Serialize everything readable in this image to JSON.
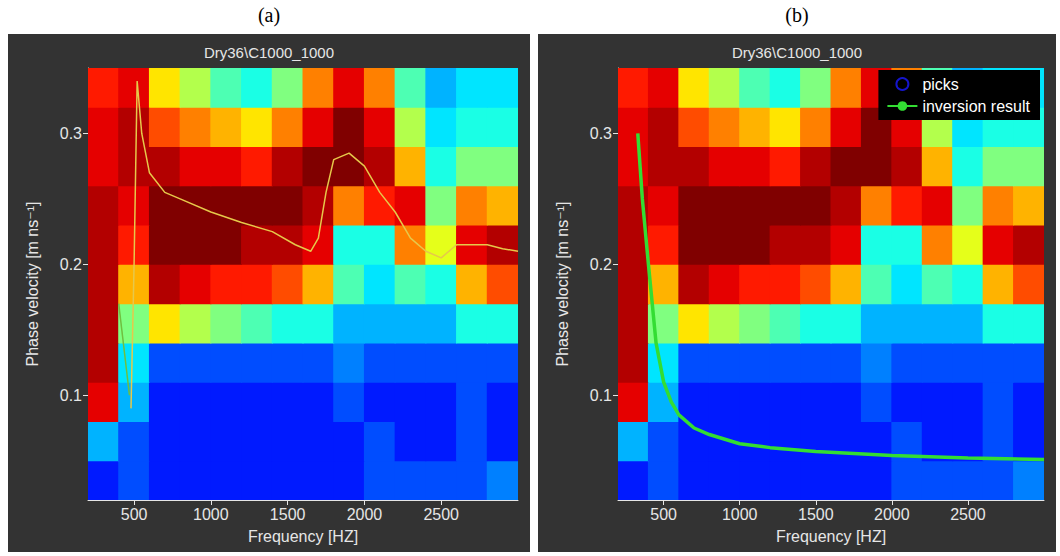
{
  "chart_data": [
    {
      "type": "heatmap",
      "panel": "(a)",
      "title": "Dry36\\C1000_1000",
      "x_label": "Frequency [HZ]",
      "y_label": "Phase velocity [m ns⁻¹]",
      "xlim": [
        200,
        3000
      ],
      "ylim": [
        0.02,
        0.35
      ],
      "xticks": [
        500,
        1000,
        1500,
        2000,
        2500
      ],
      "yticks": [
        0.1,
        0.2,
        0.3
      ],
      "grid": false,
      "heatmap": {
        "x_edges": [
          200,
          400,
          600,
          800,
          1000,
          1200,
          1400,
          1600,
          1800,
          2000,
          2200,
          2400,
          2600,
          2800,
          3000
        ],
        "y_edges": [
          0.02,
          0.05,
          0.08,
          0.11,
          0.14,
          0.17,
          0.2,
          0.23,
          0.26,
          0.29,
          0.32,
          0.35
        ],
        "clim": [
          0,
          1
        ],
        "cells": [
          [
            0.15,
            0.2,
            0.15,
            0.15,
            0.15,
            0.15,
            0.15,
            0.15,
            0.15,
            0.2,
            0.2,
            0.2,
            0.2,
            0.25
          ],
          [
            0.3,
            0.2,
            0.15,
            0.15,
            0.15,
            0.15,
            0.15,
            0.15,
            0.15,
            0.2,
            0.15,
            0.15,
            0.2,
            0.15
          ],
          [
            0.9,
            0.3,
            0.15,
            0.15,
            0.15,
            0.15,
            0.15,
            0.15,
            0.2,
            0.15,
            0.15,
            0.15,
            0.2,
            0.15
          ],
          [
            0.95,
            0.35,
            0.2,
            0.2,
            0.2,
            0.2,
            0.2,
            0.2,
            0.25,
            0.2,
            0.2,
            0.2,
            0.2,
            0.2
          ],
          [
            0.95,
            0.5,
            0.65,
            0.55,
            0.5,
            0.45,
            0.4,
            0.4,
            0.3,
            0.3,
            0.3,
            0.3,
            0.4,
            0.4
          ],
          [
            0.95,
            0.7,
            0.95,
            0.9,
            0.85,
            0.85,
            0.8,
            0.7,
            0.45,
            0.35,
            0.45,
            0.4,
            0.7,
            0.8
          ],
          [
            0.95,
            0.85,
            1.0,
            1.0,
            1.0,
            0.95,
            0.95,
            0.9,
            0.4,
            0.4,
            0.75,
            0.6,
            0.9,
            0.95
          ],
          [
            0.95,
            0.9,
            1.0,
            1.0,
            1.0,
            1.0,
            1.0,
            0.95,
            0.75,
            0.85,
            0.9,
            0.5,
            0.75,
            0.7
          ],
          [
            0.9,
            0.95,
            0.95,
            0.9,
            0.9,
            0.85,
            0.95,
            1.0,
            1.0,
            0.95,
            0.7,
            0.4,
            0.5,
            0.5
          ],
          [
            0.9,
            0.95,
            0.8,
            0.75,
            0.7,
            0.65,
            0.75,
            0.9,
            1.0,
            0.9,
            0.55,
            0.35,
            0.4,
            0.4
          ],
          [
            0.85,
            0.9,
            0.65,
            0.55,
            0.45,
            0.4,
            0.5,
            0.75,
            0.9,
            0.75,
            0.45,
            0.3,
            0.35,
            0.35
          ]
        ]
      },
      "series": [
        {
          "type": "line",
          "color": "#6fbf3f",
          "x": [
            400,
            470
          ],
          "values": [
            0.17,
            0.1
          ]
        },
        {
          "type": "line",
          "color": "#e6c84a",
          "x": [
            480,
            500,
            520,
            550,
            600,
            700,
            800,
            1000,
            1200,
            1400,
            1550,
            1650,
            1700,
            1750,
            1800,
            1900,
            2000,
            2100,
            2200,
            2300,
            2400,
            2500,
            2600,
            2700,
            2800,
            2900,
            3000
          ],
          "values": [
            0.09,
            0.2,
            0.34,
            0.3,
            0.27,
            0.255,
            0.25,
            0.24,
            0.232,
            0.225,
            0.215,
            0.21,
            0.22,
            0.255,
            0.28,
            0.285,
            0.275,
            0.255,
            0.24,
            0.22,
            0.21,
            0.205,
            0.215,
            0.215,
            0.215,
            0.212,
            0.21
          ]
        }
      ]
    },
    {
      "type": "heatmap",
      "panel": "(b)",
      "title": "Dry36\\C1000_1000",
      "x_label": "Frequency [HZ]",
      "y_label": "Phase velocity [m ns⁻¹]",
      "xlim": [
        200,
        3000
      ],
      "ylim": [
        0.02,
        0.35
      ],
      "xticks": [
        500,
        1000,
        1500,
        2000,
        2500
      ],
      "yticks": [
        0.1,
        0.2,
        0.3
      ],
      "grid": false,
      "legend": "upper right",
      "heatmap": {
        "x_edges": [
          200,
          400,
          600,
          800,
          1000,
          1200,
          1400,
          1600,
          1800,
          2000,
          2200,
          2400,
          2600,
          2800,
          3000
        ],
        "y_edges": [
          0.02,
          0.05,
          0.08,
          0.11,
          0.14,
          0.17,
          0.2,
          0.23,
          0.26,
          0.29,
          0.32,
          0.35
        ],
        "clim": [
          0,
          1
        ],
        "cells": [
          [
            0.15,
            0.2,
            0.15,
            0.15,
            0.15,
            0.15,
            0.15,
            0.15,
            0.15,
            0.2,
            0.2,
            0.2,
            0.2,
            0.25
          ],
          [
            0.3,
            0.2,
            0.15,
            0.15,
            0.15,
            0.15,
            0.15,
            0.15,
            0.15,
            0.2,
            0.15,
            0.15,
            0.2,
            0.15
          ],
          [
            0.9,
            0.3,
            0.15,
            0.15,
            0.15,
            0.15,
            0.15,
            0.15,
            0.2,
            0.15,
            0.15,
            0.15,
            0.2,
            0.15
          ],
          [
            0.95,
            0.35,
            0.2,
            0.2,
            0.2,
            0.2,
            0.2,
            0.2,
            0.25,
            0.2,
            0.2,
            0.2,
            0.2,
            0.2
          ],
          [
            0.95,
            0.5,
            0.65,
            0.55,
            0.5,
            0.45,
            0.4,
            0.4,
            0.3,
            0.3,
            0.3,
            0.3,
            0.4,
            0.4
          ],
          [
            0.95,
            0.7,
            0.95,
            0.9,
            0.85,
            0.85,
            0.8,
            0.7,
            0.45,
            0.35,
            0.45,
            0.4,
            0.7,
            0.8
          ],
          [
            0.95,
            0.85,
            1.0,
            1.0,
            1.0,
            0.95,
            0.95,
            0.9,
            0.4,
            0.4,
            0.75,
            0.6,
            0.9,
            0.95
          ],
          [
            0.95,
            0.9,
            1.0,
            1.0,
            1.0,
            1.0,
            1.0,
            0.95,
            0.75,
            0.85,
            0.9,
            0.5,
            0.75,
            0.7
          ],
          [
            0.9,
            0.95,
            0.95,
            0.9,
            0.9,
            0.85,
            0.95,
            1.0,
            1.0,
            0.95,
            0.7,
            0.4,
            0.5,
            0.5
          ],
          [
            0.9,
            0.95,
            0.8,
            0.75,
            0.7,
            0.65,
            0.75,
            0.9,
            1.0,
            0.9,
            0.55,
            0.35,
            0.4,
            0.4
          ],
          [
            0.85,
            0.9,
            0.65,
            0.55,
            0.45,
            0.4,
            0.5,
            0.75,
            0.9,
            0.75,
            0.45,
            0.3,
            0.35,
            0.35
          ]
        ]
      },
      "series": [
        {
          "name": "picks",
          "type": "scatter",
          "marker": "circle",
          "color": "#1a1aff",
          "x": [],
          "values": []
        },
        {
          "name": "inversion result",
          "type": "line",
          "color": "#33dd33",
          "x": [
            330,
            360,
            400,
            450,
            500,
            550,
            600,
            700,
            800,
            1000,
            1200,
            1500,
            2000,
            2500,
            3000
          ],
          "values": [
            0.3,
            0.25,
            0.2,
            0.14,
            0.11,
            0.095,
            0.085,
            0.075,
            0.07,
            0.063,
            0.06,
            0.057,
            0.054,
            0.052,
            0.051
          ]
        }
      ]
    }
  ]
}
